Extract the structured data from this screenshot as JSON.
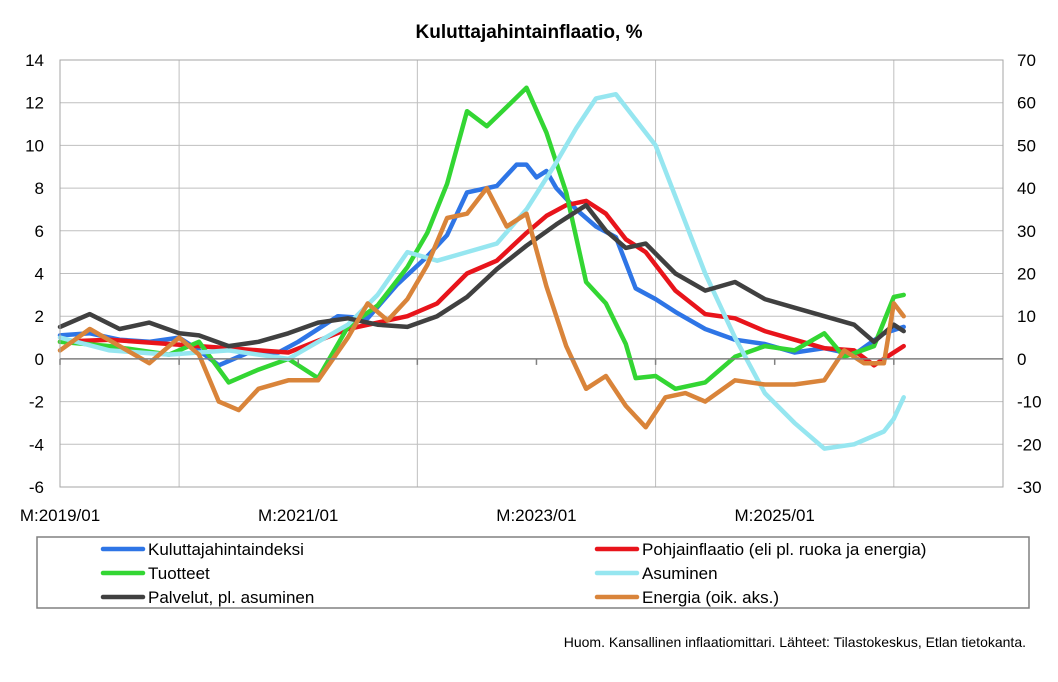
{
  "chart_data": {
    "type": "line",
    "title": "Kuluttajahintainflaatio, %",
    "note": "Huom. Kansallinen inflaatiomittari. Lähteet: Tilastokeskus, Etlan tietokanta.",
    "x_start": "2019-01",
    "x_end": "2026-12",
    "x_tick_labels": [
      "M:2019/01",
      "M:2021/01",
      "M:2023/01",
      "M:2025/01"
    ],
    "left_axis": {
      "ylim": [
        -6,
        14
      ],
      "ticks": [
        -6,
        -4,
        -2,
        0,
        2,
        4,
        6,
        8,
        10,
        12,
        14
      ]
    },
    "right_axis": {
      "ylim": [
        -30,
        70
      ],
      "ticks": [
        -30,
        -20,
        -10,
        0,
        10,
        20,
        30,
        40,
        50,
        60,
        70
      ]
    },
    "grid": true,
    "legend_position": "bottom",
    "series": [
      {
        "name": "Kuluttajahintaindeksi",
        "color": "#2e75e6",
        "axis": "left",
        "points": [
          [
            "2019-01",
            1.1
          ],
          [
            "2019-04",
            1.2
          ],
          [
            "2019-07",
            0.9
          ],
          [
            "2019-10",
            0.8
          ],
          [
            "2020-01",
            1.0
          ],
          [
            "2020-03",
            0.4
          ],
          [
            "2020-05",
            -0.3
          ],
          [
            "2020-08",
            0.3
          ],
          [
            "2020-11",
            0.3
          ],
          [
            "2021-01",
            0.8
          ],
          [
            "2021-05",
            2.0
          ],
          [
            "2021-08",
            1.9
          ],
          [
            "2021-11",
            3.5
          ],
          [
            "2022-02",
            4.8
          ],
          [
            "2022-04",
            5.8
          ],
          [
            "2022-06",
            7.8
          ],
          [
            "2022-09",
            8.1
          ],
          [
            "2022-11",
            9.1
          ],
          [
            "2022-12",
            9.1
          ],
          [
            "2023-01",
            8.5
          ],
          [
            "2023-02",
            8.8
          ],
          [
            "2023-03",
            8.0
          ],
          [
            "2023-05",
            7.0
          ],
          [
            "2023-07",
            6.2
          ],
          [
            "2023-09",
            5.7
          ],
          [
            "2023-11",
            3.3
          ],
          [
            "2024-01",
            2.8
          ],
          [
            "2024-03",
            2.2
          ],
          [
            "2024-06",
            1.4
          ],
          [
            "2024-09",
            0.9
          ],
          [
            "2024-12",
            0.7
          ],
          [
            "2025-03",
            0.3
          ],
          [
            "2025-06",
            0.5
          ],
          [
            "2025-09",
            0.2
          ],
          [
            "2025-12",
            1.2
          ],
          [
            "2026-02",
            1.5
          ]
        ]
      },
      {
        "name": "Pohjainflaatio (eli pl. ruoka ja energia)",
        "color": "#e8141b",
        "axis": "left",
        "points": [
          [
            "2019-01",
            0.8
          ],
          [
            "2019-06",
            0.9
          ],
          [
            "2019-12",
            0.7
          ],
          [
            "2020-06",
            0.5
          ],
          [
            "2020-12",
            0.3
          ],
          [
            "2021-06",
            1.4
          ],
          [
            "2021-12",
            2.0
          ],
          [
            "2022-03",
            2.6
          ],
          [
            "2022-06",
            4.0
          ],
          [
            "2022-09",
            4.6
          ],
          [
            "2022-12",
            5.9
          ],
          [
            "2023-02",
            6.7
          ],
          [
            "2023-04",
            7.2
          ],
          [
            "2023-06",
            7.4
          ],
          [
            "2023-08",
            6.8
          ],
          [
            "2023-10",
            5.6
          ],
          [
            "2023-12",
            5.0
          ],
          [
            "2024-03",
            3.2
          ],
          [
            "2024-06",
            2.1
          ],
          [
            "2024-09",
            1.9
          ],
          [
            "2024-12",
            1.3
          ],
          [
            "2025-03",
            0.9
          ],
          [
            "2025-06",
            0.5
          ],
          [
            "2025-09",
            0.4
          ],
          [
            "2025-11",
            -0.3
          ],
          [
            "2026-02",
            0.6
          ]
        ]
      },
      {
        "name": "Tuotteet",
        "color": "#33d633",
        "axis": "left",
        "points": [
          [
            "2019-01",
            0.8
          ],
          [
            "2019-06",
            0.6
          ],
          [
            "2019-12",
            0.2
          ],
          [
            "2020-03",
            0.8
          ],
          [
            "2020-06",
            -1.1
          ],
          [
            "2020-09",
            -0.5
          ],
          [
            "2020-12",
            0.0
          ],
          [
            "2021-03",
            -0.9
          ],
          [
            "2021-06",
            1.5
          ],
          [
            "2021-09",
            2.5
          ],
          [
            "2021-12",
            4.3
          ],
          [
            "2022-02",
            5.9
          ],
          [
            "2022-04",
            8.2
          ],
          [
            "2022-06",
            11.6
          ],
          [
            "2022-08",
            10.9
          ],
          [
            "2022-10",
            11.8
          ],
          [
            "2022-12",
            12.7
          ],
          [
            "2023-02",
            10.6
          ],
          [
            "2023-04",
            7.8
          ],
          [
            "2023-06",
            3.6
          ],
          [
            "2023-08",
            2.6
          ],
          [
            "2023-10",
            0.7
          ],
          [
            "2023-11",
            -0.9
          ],
          [
            "2024-01",
            -0.8
          ],
          [
            "2024-03",
            -1.4
          ],
          [
            "2024-06",
            -1.1
          ],
          [
            "2024-09",
            0.1
          ],
          [
            "2024-12",
            0.6
          ],
          [
            "2025-03",
            0.4
          ],
          [
            "2025-06",
            1.2
          ],
          [
            "2025-08",
            0.1
          ],
          [
            "2025-11",
            0.6
          ],
          [
            "2026-01",
            2.9
          ],
          [
            "2026-02",
            3.0
          ]
        ]
      },
      {
        "name": "Asuminen",
        "color": "#96e6f0",
        "axis": "right",
        "points": [
          [
            "2019-01",
            5
          ],
          [
            "2019-06",
            2
          ],
          [
            "2019-12",
            1
          ],
          [
            "2020-06",
            2
          ],
          [
            "2020-12",
            0
          ],
          [
            "2021-06",
            8
          ],
          [
            "2021-09",
            15
          ],
          [
            "2021-12",
            25
          ],
          [
            "2022-03",
            23
          ],
          [
            "2022-06",
            25
          ],
          [
            "2022-09",
            27
          ],
          [
            "2022-12",
            35
          ],
          [
            "2023-03",
            46
          ],
          [
            "2023-05",
            54
          ],
          [
            "2023-07",
            61
          ],
          [
            "2023-09",
            62
          ],
          [
            "2023-11",
            56
          ],
          [
            "2024-01",
            50
          ],
          [
            "2024-03",
            38
          ],
          [
            "2024-06",
            20
          ],
          [
            "2024-09",
            5
          ],
          [
            "2024-12",
            -8
          ],
          [
            "2025-03",
            -15
          ],
          [
            "2025-06",
            -21
          ],
          [
            "2025-09",
            -20
          ],
          [
            "2025-12",
            -17
          ],
          [
            "2026-01",
            -14
          ],
          [
            "2026-02",
            -9
          ]
        ]
      },
      {
        "name": "Palvelut, pl. asuminen",
        "color": "#404040",
        "axis": "left",
        "points": [
          [
            "2019-01",
            1.5
          ],
          [
            "2019-04",
            2.1
          ],
          [
            "2019-07",
            1.4
          ],
          [
            "2019-10",
            1.7
          ],
          [
            "2020-01",
            1.2
          ],
          [
            "2020-03",
            1.1
          ],
          [
            "2020-06",
            0.6
          ],
          [
            "2020-09",
            0.8
          ],
          [
            "2020-12",
            1.2
          ],
          [
            "2021-03",
            1.7
          ],
          [
            "2021-06",
            1.9
          ],
          [
            "2021-09",
            1.6
          ],
          [
            "2021-12",
            1.5
          ],
          [
            "2022-03",
            2.0
          ],
          [
            "2022-06",
            2.9
          ],
          [
            "2022-09",
            4.2
          ],
          [
            "2022-12",
            5.3
          ],
          [
            "2023-03",
            6.3
          ],
          [
            "2023-06",
            7.2
          ],
          [
            "2023-08",
            6.0
          ],
          [
            "2023-10",
            5.2
          ],
          [
            "2023-12",
            5.4
          ],
          [
            "2024-03",
            4.0
          ],
          [
            "2024-06",
            3.2
          ],
          [
            "2024-09",
            3.6
          ],
          [
            "2024-12",
            2.8
          ],
          [
            "2025-03",
            2.4
          ],
          [
            "2025-06",
            2.0
          ],
          [
            "2025-09",
            1.6
          ],
          [
            "2025-11",
            0.8
          ],
          [
            "2026-01",
            1.6
          ],
          [
            "2026-02",
            1.3
          ]
        ]
      },
      {
        "name": "Energia (oik. aks.)",
        "color": "#d9843a",
        "axis": "right",
        "points": [
          [
            "2019-01",
            2
          ],
          [
            "2019-04",
            7
          ],
          [
            "2019-07",
            3
          ],
          [
            "2019-10",
            -1
          ],
          [
            "2020-01",
            5
          ],
          [
            "2020-03",
            1
          ],
          [
            "2020-05",
            -10
          ],
          [
            "2020-07",
            -12
          ],
          [
            "2020-09",
            -7
          ],
          [
            "2020-12",
            -5
          ],
          [
            "2021-03",
            -5
          ],
          [
            "2021-06",
            5
          ],
          [
            "2021-08",
            13
          ],
          [
            "2021-10",
            9
          ],
          [
            "2021-12",
            14
          ],
          [
            "2022-02",
            22
          ],
          [
            "2022-04",
            33
          ],
          [
            "2022-06",
            34
          ],
          [
            "2022-08",
            40
          ],
          [
            "2022-10",
            31
          ],
          [
            "2022-12",
            34
          ],
          [
            "2023-02",
            17
          ],
          [
            "2023-04",
            3
          ],
          [
            "2023-06",
            -7
          ],
          [
            "2023-08",
            -4
          ],
          [
            "2023-10",
            -11
          ],
          [
            "2023-12",
            -16
          ],
          [
            "2024-02",
            -9
          ],
          [
            "2024-04",
            -8
          ],
          [
            "2024-06",
            -10
          ],
          [
            "2024-09",
            -5
          ],
          [
            "2024-12",
            -6
          ],
          [
            "2025-03",
            -6
          ],
          [
            "2025-06",
            -5
          ],
          [
            "2025-08",
            2
          ],
          [
            "2025-10",
            -1
          ],
          [
            "2025-12",
            -1
          ],
          [
            "2026-01",
            13
          ],
          [
            "2026-02",
            10
          ]
        ]
      }
    ]
  }
}
